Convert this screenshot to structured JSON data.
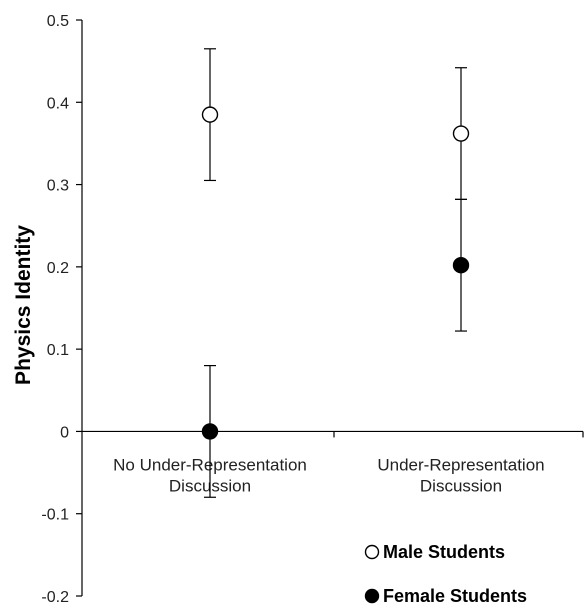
{
  "chart_data": {
    "type": "scatter",
    "ylabel": "Physics Identity",
    "xlabel": "",
    "categories": [
      "No Under-Representation\nDiscussion",
      "Under-Representation\nDiscussion"
    ],
    "ylim": [
      -0.2,
      0.5
    ],
    "yticks": [
      -0.2,
      -0.1,
      0,
      0.1,
      0.2,
      0.3,
      0.4,
      0.5
    ],
    "ytick_labels": [
      "-0.2",
      "-0.1",
      "0",
      "0.1",
      "0.2",
      "0.3",
      "0.4",
      "0.5"
    ],
    "series": [
      {
        "name": "Male Students",
        "marker": "open-circle",
        "values": [
          0.385,
          0.362
        ],
        "error": [
          0.08,
          0.08
        ]
      },
      {
        "name": "Female Students",
        "marker": "filled-circle",
        "values": [
          0.0,
          0.202
        ],
        "error": [
          0.08,
          0.08
        ]
      }
    ],
    "legend_position": "bottom-right",
    "grid": false,
    "colors": {
      "axis": "#000000",
      "marker_fill": "#000000",
      "marker_open": "#ffffff"
    }
  }
}
